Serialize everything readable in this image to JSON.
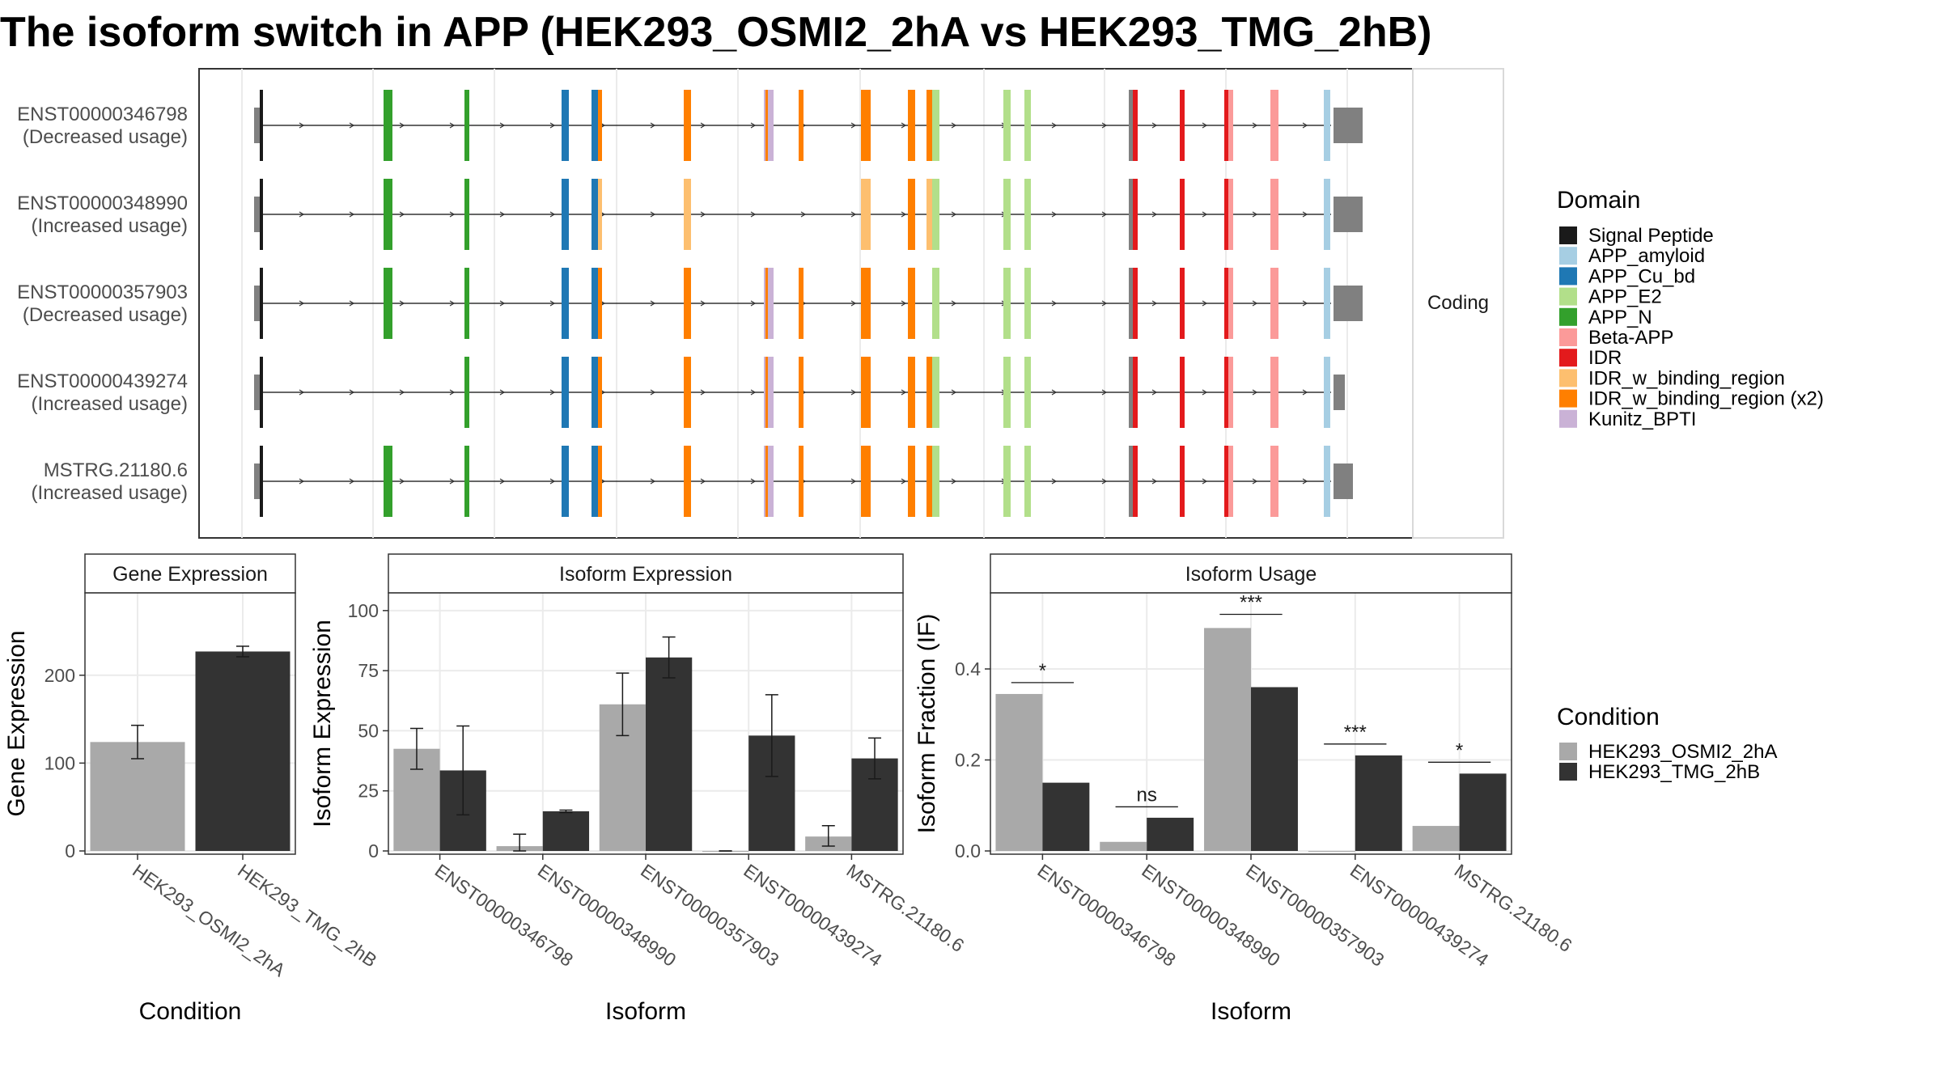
{
  "title": "The isoform switch in APP (HEK293_OSMI2_2hA vs HEK293_TMG_2hB)",
  "structure_panel": {
    "strip_label": "Coding",
    "isoforms": [
      {
        "id": "ENST00000346798",
        "usage": "(Decreased usage)"
      },
      {
        "id": "ENST00000348990",
        "usage": "(Increased usage)"
      },
      {
        "id": "ENST00000357903",
        "usage": "(Decreased usage)"
      },
      {
        "id": "ENST00000439274",
        "usage": "(Increased usage)"
      },
      {
        "id": "MSTRG.21180.6",
        "usage": "(Increased usage)"
      }
    ]
  },
  "domain_legend": {
    "title": "Domain",
    "items": [
      {
        "label": "Signal Peptide",
        "color": "#1a1a1a"
      },
      {
        "label": "APP_amyloid",
        "color": "#a6cee3"
      },
      {
        "label": "APP_Cu_bd",
        "color": "#1f78b4"
      },
      {
        "label": "APP_E2",
        "color": "#b2df8a"
      },
      {
        "label": "APP_N",
        "color": "#33a02c"
      },
      {
        "label": "Beta-APP",
        "color": "#fb9a99"
      },
      {
        "label": "IDR",
        "color": "#e31a1c"
      },
      {
        "label": "IDR_w_binding_region",
        "color": "#fdbf6f"
      },
      {
        "label": "IDR_w_binding_region (x2)",
        "color": "#ff7f00"
      },
      {
        "label": "Kunitz_BPTI",
        "color": "#cab2d6"
      }
    ]
  },
  "condition_legend": {
    "title": "Condition",
    "items": [
      {
        "label": "HEK293_OSMI2_2hA",
        "color": "#a9a9a9"
      },
      {
        "label": "HEK293_TMG_2hB",
        "color": "#333333"
      }
    ]
  },
  "colors": {
    "condition_a": "#a9a9a9",
    "condition_b": "#333333",
    "utr": "#808080",
    "intron": "#333333",
    "grid": "#ebebeb"
  },
  "chart_data": [
    {
      "type": "bar",
      "strip": "Gene Expression",
      "xlabel": "Condition",
      "ylabel": "Gene Expression",
      "categories": [
        "HEK293_OSMI2_2hA",
        "HEK293_TMG_2hB"
      ],
      "values": [
        124,
        227
      ],
      "error_low": [
        105,
        221
      ],
      "error_high": [
        143,
        233
      ],
      "yticks": [
        "0",
        "100",
        "200"
      ],
      "ylim": [
        0,
        290
      ]
    },
    {
      "type": "bar",
      "strip": "Isoform Expression",
      "xlabel": "Isoform",
      "ylabel": "Isoform Expression",
      "categories": [
        "ENST00000346798",
        "ENST00000348990",
        "ENST00000357903",
        "ENST00000439274",
        "MSTRG.21180.6"
      ],
      "series": [
        {
          "name": "HEK293_OSMI2_2hA",
          "values": [
            42.5,
            2,
            61,
            0,
            6
          ],
          "error_low": [
            34,
            0,
            48,
            0,
            2
          ],
          "error_high": [
            51,
            7,
            74,
            0,
            10.5
          ]
        },
        {
          "name": "HEK293_TMG_2hB",
          "values": [
            33.5,
            16.5,
            80.5,
            48,
            38.5
          ],
          "error_low": [
            15,
            16,
            72,
            31,
            30
          ],
          "error_high": [
            52,
            17,
            89,
            65,
            47
          ]
        }
      ],
      "yticks": [
        "0",
        "25",
        "50",
        "75",
        "100"
      ],
      "ylim": [
        0,
        106
      ]
    },
    {
      "type": "bar",
      "strip": "Isoform Usage",
      "xlabel": "Isoform",
      "ylabel": "Isoform Fraction (IF)",
      "categories": [
        "ENST00000346798",
        "ENST00000348990",
        "ENST00000357903",
        "ENST00000439274",
        "MSTRG.21180.6"
      ],
      "series": [
        {
          "name": "HEK293_OSMI2_2hA",
          "values": [
            0.345,
            0.02,
            0.49,
            0.0,
            0.055
          ]
        },
        {
          "name": "HEK293_TMG_2hB",
          "values": [
            0.15,
            0.073,
            0.36,
            0.21,
            0.17
          ]
        }
      ],
      "significance": [
        "*",
        "ns",
        "***",
        "***",
        "*"
      ],
      "sig_y": [
        0.37,
        0.097,
        0.52,
        0.235,
        0.195
      ],
      "yticks": [
        "0.0",
        "0.2",
        "0.4"
      ],
      "ylim": [
        0,
        0.56
      ]
    }
  ]
}
